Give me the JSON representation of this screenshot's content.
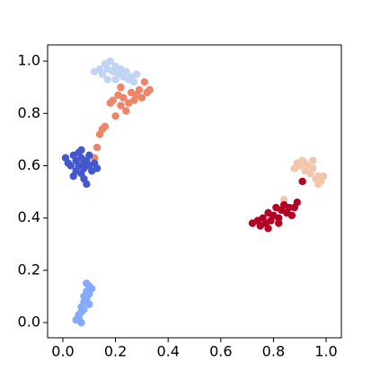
{
  "chart_data": {
    "type": "scatter",
    "xlim": [
      -0.058,
      1.058
    ],
    "ylim": [
      -0.058,
      1.062
    ],
    "xticks": [
      {
        "value": 0,
        "label": "0.0"
      },
      0.2,
      0.4,
      0.6,
      0.8,
      {
        "value": 1,
        "label": "1.0"
      }
    ],
    "yticks": [
      {
        "value": 0,
        "label": "0.0"
      },
      0.2,
      0.4,
      0.6,
      0.8,
      {
        "value": 1,
        "label": "1.0"
      }
    ],
    "series": [
      {
        "color": "#c0d4f5",
        "x": [
          0.12,
          0.14,
          0.15,
          0.16,
          0.17,
          0.18,
          0.19,
          0.2,
          0.21,
          0.22,
          0.23,
          0.24,
          0.25,
          0.26,
          0.27,
          0.28,
          0.17,
          0.2
        ],
        "values": [
          0.96,
          0.97,
          0.95,
          0.99,
          0.97,
          1.0,
          0.96,
          0.98,
          0.95,
          0.97,
          0.94,
          0.96,
          0.93,
          0.94,
          0.92,
          0.95,
          0.93,
          0.93
        ]
      },
      {
        "color": "#ee8468",
        "x": [
          0.12,
          0.13,
          0.14,
          0.15,
          0.16,
          0.18,
          0.19,
          0.2,
          0.21,
          0.22,
          0.23,
          0.24,
          0.25,
          0.26,
          0.27,
          0.28,
          0.29,
          0.3,
          0.31,
          0.32,
          0.33,
          0.22
        ],
        "values": [
          0.63,
          0.67,
          0.72,
          0.74,
          0.75,
          0.84,
          0.85,
          0.79,
          0.87,
          0.83,
          0.86,
          0.81,
          0.84,
          0.88,
          0.85,
          0.87,
          0.89,
          0.86,
          0.92,
          0.88,
          0.89,
          0.9
        ]
      },
      {
        "color": "#4358cb",
        "x": [
          0.01,
          0.02,
          0.03,
          0.04,
          0.05,
          0.05,
          0.06,
          0.06,
          0.07,
          0.07,
          0.08,
          0.08,
          0.09,
          0.09,
          0.1,
          0.1,
          0.11,
          0.12,
          0.13,
          0.04,
          0.07,
          0.08
        ],
        "values": [
          0.63,
          0.61,
          0.6,
          0.64,
          0.58,
          0.62,
          0.6,
          0.65,
          0.57,
          0.63,
          0.61,
          0.59,
          0.62,
          0.53,
          0.6,
          0.64,
          0.58,
          0.61,
          0.59,
          0.56,
          0.66,
          0.55
        ]
      },
      {
        "color": "#86a9fc",
        "x": [
          0.05,
          0.06,
          0.06,
          0.07,
          0.07,
          0.08,
          0.08,
          0.08,
          0.09,
          0.09,
          0.1,
          0.1,
          0.11,
          0.09,
          0.07,
          0.1
        ],
        "values": [
          0.01,
          0.02,
          0.03,
          0.04,
          0.06,
          0.05,
          0.08,
          0.1,
          0.09,
          0.12,
          0.11,
          0.14,
          0.13,
          0.15,
          0.0,
          0.07
        ]
      },
      {
        "color": "#f4c5ad",
        "x": [
          0.88,
          0.89,
          0.9,
          0.91,
          0.92,
          0.93,
          0.94,
          0.95,
          0.96,
          0.97,
          0.98,
          0.99,
          0.92,
          0.95,
          0.97,
          0.84
        ],
        "values": [
          0.59,
          0.61,
          0.6,
          0.62,
          0.58,
          0.6,
          0.57,
          0.59,
          0.55,
          0.56,
          0.54,
          0.56,
          0.61,
          0.62,
          0.53,
          0.47
        ]
      },
      {
        "color": "#b40426",
        "x": [
          0.72,
          0.74,
          0.75,
          0.76,
          0.77,
          0.78,
          0.79,
          0.8,
          0.81,
          0.82,
          0.83,
          0.84,
          0.85,
          0.86,
          0.87,
          0.88,
          0.89,
          0.78,
          0.82,
          0.91
        ],
        "values": [
          0.38,
          0.39,
          0.37,
          0.4,
          0.38,
          0.42,
          0.39,
          0.41,
          0.44,
          0.4,
          0.43,
          0.45,
          0.42,
          0.44,
          0.41,
          0.44,
          0.46,
          0.36,
          0.38,
          0.54
        ]
      }
    ]
  }
}
